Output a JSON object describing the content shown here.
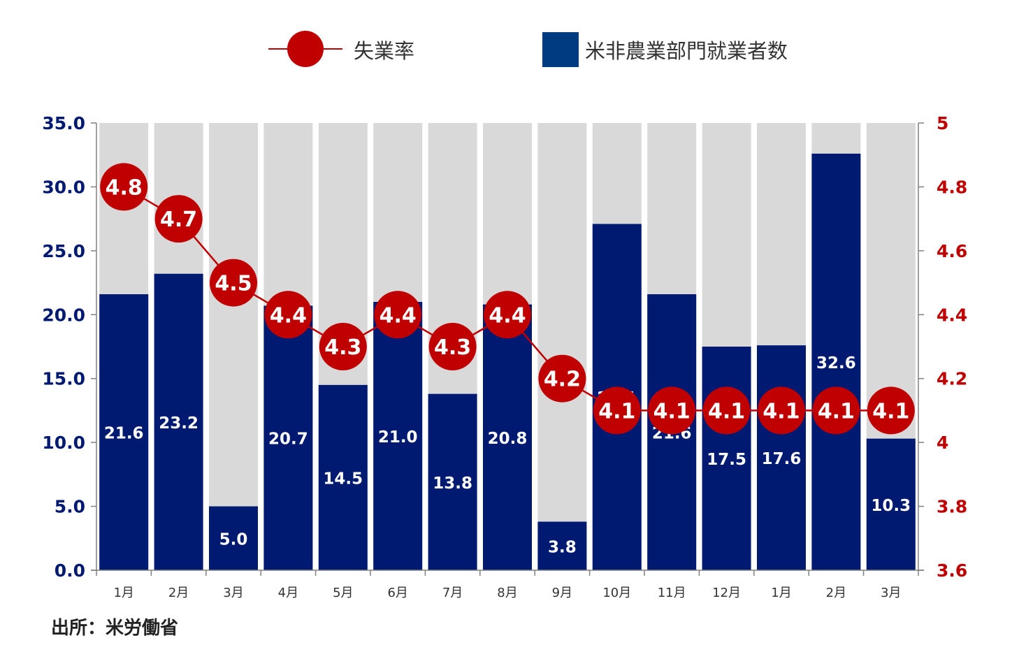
{
  "legend": {
    "unemployment_label": "失業率",
    "payrolls_label": "米非農業部門就業者数"
  },
  "source": "出所：米労働省",
  "colors": {
    "bar": "#001a72",
    "bar_background": "#d9d9d9",
    "line": "#c00000",
    "left_axis_text": "#001a72",
    "right_axis_text": "#c00000",
    "legend_square": "#003a80"
  },
  "chart_data": {
    "type": "bar",
    "categories": [
      "1月",
      "2月",
      "3月",
      "4月",
      "5月",
      "6月",
      "7月",
      "8月",
      "9月",
      "10月",
      "11月",
      "12月",
      "1月",
      "2月",
      "3月"
    ],
    "series": [
      {
        "name": "米非農業部門就業者数",
        "type": "bar",
        "axis": "left",
        "values": [
          21.6,
          23.2,
          5.0,
          20.7,
          14.5,
          21.0,
          13.8,
          20.8,
          3.8,
          27.1,
          21.6,
          17.5,
          17.6,
          32.6,
          10.3
        ],
        "labels": [
          "21.6",
          "23.2",
          "5.0",
          "20.7",
          "14.5",
          "21.0",
          "13.8",
          "20.8",
          "3.8",
          "27.1",
          "21.6",
          "17.5",
          "17.6",
          "32.6",
          "10.3"
        ]
      },
      {
        "name": "失業率",
        "type": "line",
        "axis": "right",
        "values": [
          4.8,
          4.7,
          4.5,
          4.4,
          4.3,
          4.4,
          4.3,
          4.4,
          4.2,
          4.1,
          4.1,
          4.1,
          4.1,
          4.1,
          4.1
        ],
        "labels": [
          "4.8",
          "4.7",
          "4.5",
          "4.4",
          "4.3",
          "4.4",
          "4.3",
          "4.4",
          "4.2",
          "4.1",
          "4.1",
          "4.1",
          "4.1",
          "4.1",
          "4.1"
        ]
      }
    ],
    "left_axis": {
      "ylim": [
        0,
        35
      ],
      "ticks": [
        "0.0",
        "5.0",
        "10.0",
        "15.0",
        "20.0",
        "25.0",
        "30.0",
        "35.0"
      ]
    },
    "right_axis": {
      "ylim": [
        3.6,
        5
      ],
      "ticks": [
        "3.6",
        "3.8",
        "4",
        "4.2",
        "4.4",
        "4.6",
        "4.8",
        "5"
      ]
    },
    "legend_position": "top"
  }
}
